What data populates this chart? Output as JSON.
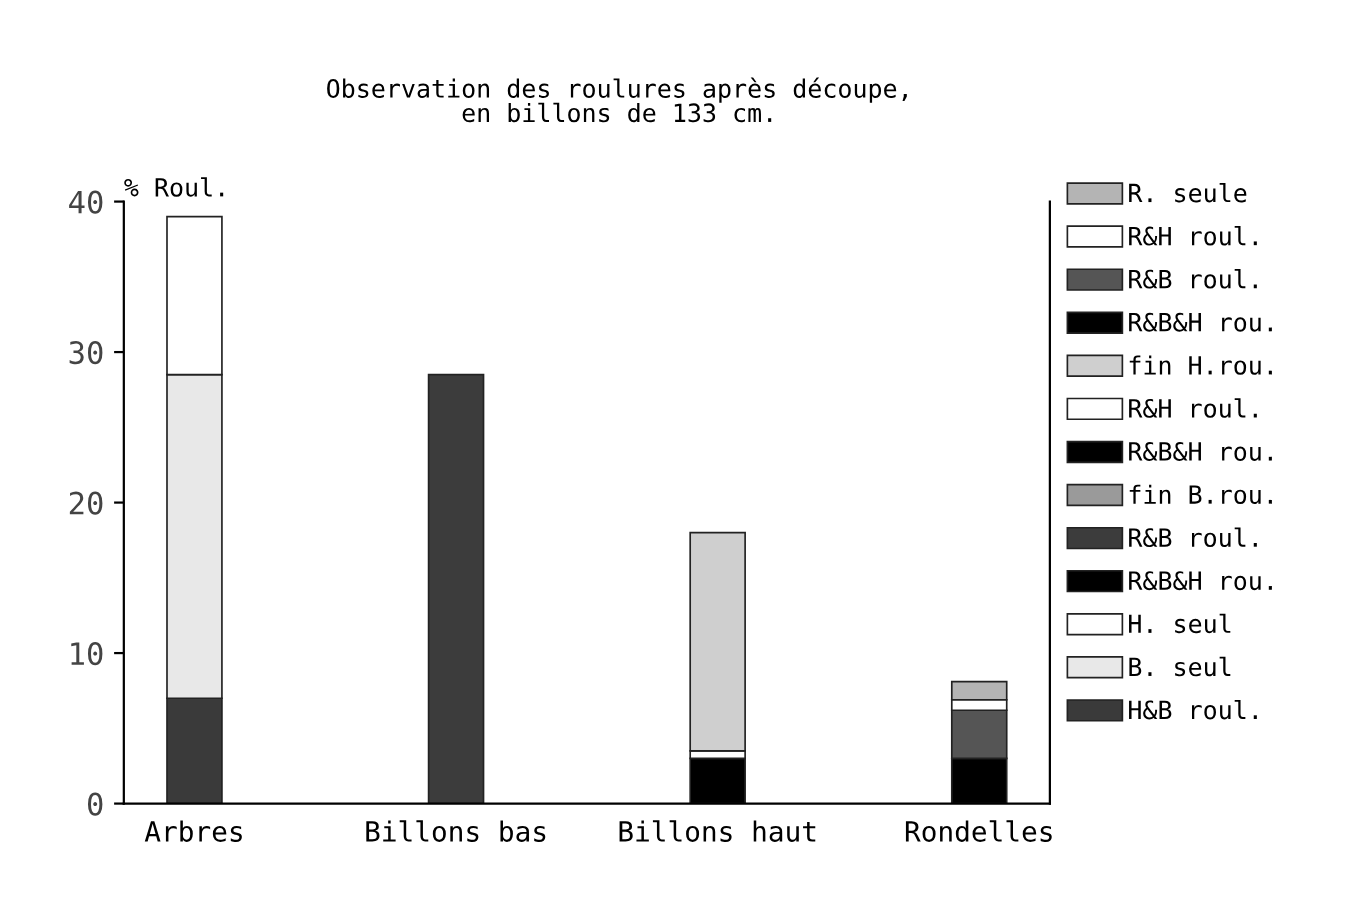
{
  "chart_data": {
    "type": "bar",
    "stacked": true,
    "title": "Observation des roulures après découpe,\nen billons de 133 cm.",
    "ylabel": "% Roul.",
    "categories": [
      "Arbres",
      "Billons bas",
      "Billons haut",
      "Rondelles"
    ],
    "series": [
      {
        "name": "H&B roul.",
        "color": "#3a3a3a",
        "values": [
          7,
          null,
          null,
          null
        ]
      },
      {
        "name": "B. seul",
        "color": "#e8e8e8",
        "values": [
          21.5,
          null,
          null,
          null
        ]
      },
      {
        "name": "H. seul",
        "color": "#ffffff",
        "values": [
          10.5,
          null,
          null,
          null
        ]
      },
      {
        "name": "R&B&H rou.",
        "color": "#000000",
        "values": [
          null,
          null,
          null,
          null
        ]
      },
      {
        "name": "R&B roul.",
        "color": "#3c3c3c",
        "values": [
          null,
          28.5,
          null,
          null
        ]
      },
      {
        "name": "fin B.rou.",
        "color": "#9a9a9a",
        "values": [
          null,
          null,
          null,
          null
        ]
      },
      {
        "name": "R&B&H rou.",
        "color": "#000000",
        "values": [
          null,
          null,
          3,
          null
        ]
      },
      {
        "name": "R&H roul.",
        "color": "#ffffff",
        "values": [
          null,
          null,
          0.5,
          null
        ]
      },
      {
        "name": "fin H.rou.",
        "color": "#cfcfcf",
        "values": [
          null,
          null,
          14.5,
          null
        ]
      },
      {
        "name": "R&B&H rou.",
        "color": "#000000",
        "values": [
          null,
          null,
          null,
          3
        ]
      },
      {
        "name": "R&B roul.",
        "color": "#555555",
        "values": [
          null,
          null,
          null,
          3.2
        ]
      },
      {
        "name": "R&H roul.",
        "color": "#ffffff",
        "values": [
          null,
          null,
          null,
          0.7
        ]
      },
      {
        "name": "R. seule",
        "color": "#b4b4b4",
        "values": [
          null,
          null,
          null,
          1.2
        ]
      }
    ],
    "ylim": [
      0,
      40
    ],
    "yticks": [
      0,
      10,
      20,
      30,
      40
    ],
    "grid": false,
    "legend": "right"
  }
}
